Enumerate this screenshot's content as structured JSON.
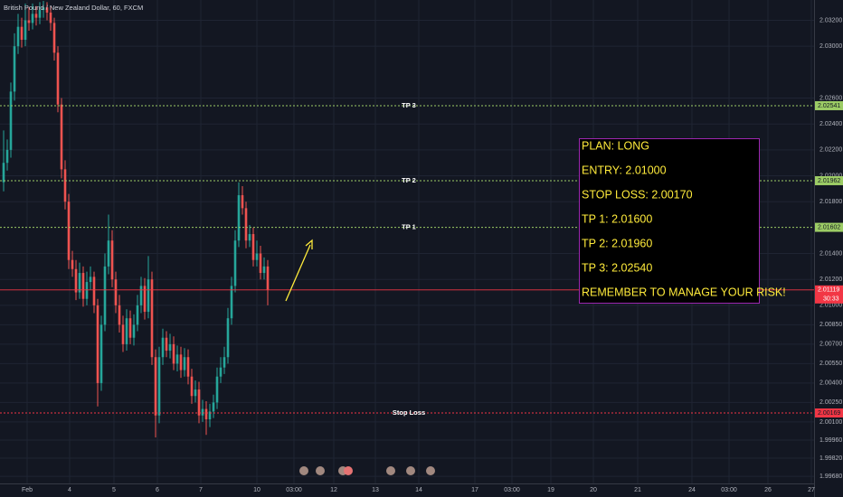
{
  "chart_data": {
    "type": "candlestick",
    "title": "British Pound / New Zealand Dollar, 60, FXCM",
    "up_color": "#26a69a",
    "down_color": "#ef5350",
    "open": [
      2.0195,
      2.021,
      2.022,
      2.0265,
      2.03,
      2.0315,
      2.0305,
      2.032,
      2.0318,
      2.0325,
      2.0322,
      2.0328,
      2.033,
      2.0326,
      2.0318,
      2.0295,
      2.0255,
      2.0205,
      2.018,
      2.0135,
      2.0128,
      2.011,
      2.0125,
      2.0105,
      2.0118,
      2.0122,
      2.01,
      2.004,
      2.0085,
      2.013,
      2.015,
      2.012,
      2.01,
      2.0085,
      2.007,
      2.009,
      2.0075,
      2.0085,
      2.01,
      2.0115,
      2.0095,
      2.012,
      2.006,
      2.0015,
      2.006,
      2.0075,
      2.0065,
      2.007,
      2.0055,
      2.0062,
      2.005,
      2.006,
      2.0045,
      2.003,
      2.0035,
      2.0015,
      2.002,
      2.0012,
      2.0018,
      2.0025,
      2.0045,
      2.0052,
      2.006,
      2.009,
      2.0115,
      2.015,
      2.0185,
      2.0175,
      2.015,
      2.0155,
      2.0135,
      2.014,
      2.0125,
      2.013
    ],
    "high": [
      2.0235,
      2.0228,
      2.0272,
      2.031,
      2.0325,
      2.0322,
      2.0333,
      2.033,
      2.0333,
      2.0331,
      2.0334,
      2.0335,
      2.0334,
      2.0331,
      2.0322,
      2.03,
      2.026,
      2.0212,
      2.0186,
      2.0142,
      2.0135,
      2.0133,
      2.013,
      2.0126,
      2.013,
      2.0126,
      2.0105,
      2.0092,
      2.014,
      2.017,
      2.0158,
      2.0126,
      2.0108,
      2.0092,
      2.0097,
      2.0096,
      2.0093,
      2.0108,
      2.0122,
      2.0121,
      2.0138,
      2.0126,
      2.0066,
      2.0068,
      2.0082,
      2.008,
      2.0078,
      2.0076,
      2.0069,
      2.0068,
      2.0067,
      2.0066,
      2.0051,
      2.0042,
      2.0041,
      2.0027,
      2.0026,
      2.0024,
      2.0031,
      2.0052,
      2.006,
      2.0068,
      2.0098,
      2.0122,
      2.0158,
      2.0195,
      2.0192,
      2.018,
      2.0162,
      2.016,
      2.015,
      2.0146,
      2.0137,
      2.0135
    ],
    "low": [
      2.0188,
      2.0204,
      2.0214,
      2.0258,
      2.0294,
      2.0299,
      2.03,
      2.0312,
      2.0313,
      2.0316,
      2.0317,
      2.0322,
      2.032,
      2.0312,
      2.0289,
      2.0249,
      2.0198,
      2.0174,
      2.0128,
      2.0122,
      2.0104,
      2.0105,
      2.0099,
      2.01,
      2.0112,
      2.0094,
      2.0022,
      2.0034,
      2.008,
      2.0124,
      2.0114,
      2.0094,
      2.0079,
      2.0064,
      2.0065,
      2.007,
      2.0069,
      2.008,
      2.0094,
      2.0089,
      2.009,
      2.0054,
      1.9998,
      2.0009,
      2.0054,
      2.006,
      2.0059,
      2.005,
      2.0049,
      2.0044,
      2.0045,
      2.0039,
      2.0024,
      2.0025,
      2.0009,
      2.001,
      2.0,
      2.0006,
      2.0013,
      2.002,
      2.004,
      2.0047,
      2.0055,
      2.0085,
      2.011,
      2.0145,
      2.017,
      2.0144,
      2.0145,
      2.013,
      2.013,
      2.012,
      2.012,
      2.01
    ],
    "close": [
      2.021,
      2.022,
      2.0265,
      2.03,
      2.0315,
      2.0305,
      2.032,
      2.0318,
      2.0325,
      2.0322,
      2.0328,
      2.033,
      2.0326,
      2.0318,
      2.0295,
      2.0255,
      2.0205,
      2.018,
      2.0135,
      2.0128,
      2.011,
      2.0125,
      2.0105,
      2.0118,
      2.0122,
      2.01,
      2.004,
      2.0085,
      2.013,
      2.015,
      2.012,
      2.01,
      2.0085,
      2.007,
      2.009,
      2.0075,
      2.0085,
      2.01,
      2.0115,
      2.0095,
      2.012,
      2.006,
      2.0015,
      2.006,
      2.0075,
      2.0065,
      2.007,
      2.0055,
      2.0062,
      2.005,
      2.006,
      2.0045,
      2.003,
      2.0035,
      2.0015,
      2.002,
      2.0012,
      2.0018,
      2.0025,
      2.0045,
      2.0052,
      2.006,
      2.009,
      2.0115,
      2.015,
      2.0185,
      2.0175,
      2.015,
      2.0155,
      2.0135,
      2.014,
      2.0125,
      2.013,
      2.0112
    ],
    "xlim": [
      -1,
      224
    ],
    "xticks": [
      {
        "value": 6.5,
        "label": "Feb"
      },
      {
        "value": 18.25,
        "label": "4"
      },
      {
        "value": 30.5,
        "label": "5"
      },
      {
        "value": 42.5,
        "label": "6"
      },
      {
        "value": 54.5,
        "label": "7"
      },
      {
        "value": 70,
        "label": "10"
      },
      {
        "value": 80.25,
        "label": "03:00"
      },
      {
        "value": 91.25,
        "label": "12"
      },
      {
        "value": 102.75,
        "label": "13"
      },
      {
        "value": 114.75,
        "label": "14"
      },
      {
        "value": 130.25,
        "label": "17"
      },
      {
        "value": 140.5,
        "label": "03:00"
      },
      {
        "value": 151.25,
        "label": "19"
      },
      {
        "value": 163,
        "label": "20"
      },
      {
        "value": 175.25,
        "label": "21"
      },
      {
        "value": 190.25,
        "label": "24"
      },
      {
        "value": 200.5,
        "label": "03:00"
      },
      {
        "value": 211.25,
        "label": "26"
      },
      {
        "value": 223.25,
        "label": "27"
      }
    ],
    "ylim": [
      1.99625,
      2.03357
    ],
    "yticks": [
      {
        "value": 2.032,
        "label": "2.03200"
      },
      {
        "value": 2.03,
        "label": "2.03000"
      },
      {
        "value": 2.026,
        "label": "2.02600"
      },
      {
        "value": 2.024,
        "label": "2.02400"
      },
      {
        "value": 2.022,
        "label": "2.02200"
      },
      {
        "value": 2.02,
        "label": "2.02000"
      },
      {
        "value": 2.018,
        "label": "2.01800"
      },
      {
        "value": 2.014,
        "label": "2.01400"
      },
      {
        "value": 2.012,
        "label": "2.01200"
      },
      {
        "value": 2.01,
        "label": "2.01000"
      },
      {
        "value": 2.0085,
        "label": "2.00850"
      },
      {
        "value": 2.007,
        "label": "2.00700"
      },
      {
        "value": 2.0055,
        "label": "2.00550"
      },
      {
        "value": 2.004,
        "label": "2.00400"
      },
      {
        "value": 2.0025,
        "label": "2.00250"
      },
      {
        "value": 2.001,
        "label": "2.00100"
      },
      {
        "value": 1.9996,
        "label": "1.99960"
      },
      {
        "value": 1.9982,
        "label": "1.99820"
      },
      {
        "value": 1.9968,
        "label": "1.99680"
      }
    ],
    "grid": true,
    "levels": [
      {
        "name": "TP 3",
        "value": 2.02541,
        "color": "#9ccc65"
      },
      {
        "name": "TP 2",
        "value": 2.01962,
        "color": "#9ccc65"
      },
      {
        "name": "TP 1",
        "value": 2.01602,
        "color": "#9ccc65"
      },
      {
        "name": "Stop Loss",
        "value": 2.00169,
        "color": "#f23645"
      }
    ],
    "current_price": {
      "value": 2.01119,
      "color": "#f23645",
      "countdown": "30:33"
    },
    "annotation": {
      "lines": [
        "PLAN: LONG",
        "ENTRY: 2.01000",
        "STOP LOSS: 2.00170",
        "TP 1: 2.01600",
        "TP 2: 2.01960",
        "TP 3: 2.02540",
        "REMEMBER TO MANAGE YOUR RISK!"
      ]
    }
  }
}
